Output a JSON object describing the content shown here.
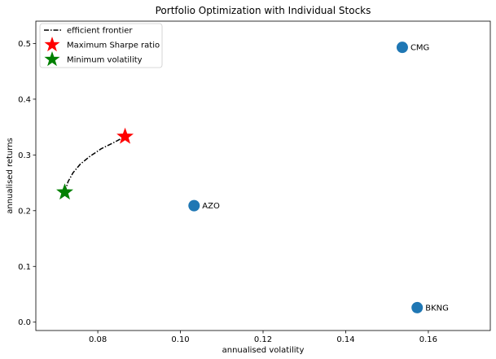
{
  "chart_data": {
    "type": "scatter",
    "title": "Portfolio Optimization with Individual Stocks",
    "xlabel": "annualised volatility",
    "ylabel": "annualised returns",
    "xlim": [
      0.065,
      0.175
    ],
    "ylim": [
      -0.015,
      0.54
    ],
    "xticks": [
      0.08,
      0.1,
      0.12,
      0.14,
      0.16
    ],
    "xtick_labels": [
      "0.08",
      "0.10",
      "0.12",
      "0.14",
      "0.16"
    ],
    "yticks": [
      0.0,
      0.1,
      0.2,
      0.3,
      0.4,
      0.5
    ],
    "ytick_labels": [
      "0.0",
      "0.1",
      "0.2",
      "0.3",
      "0.4",
      "0.5"
    ],
    "legend_position": "top-left",
    "grid": false,
    "stocks": [
      {
        "name": "CMG",
        "x": 0.1537,
        "y": 0.493
      },
      {
        "name": "AZO",
        "x": 0.1033,
        "y": 0.209
      },
      {
        "name": "BKNG",
        "x": 0.1573,
        "y": 0.026
      }
    ],
    "frontier": {
      "name": "efficient frontier",
      "x": [
        0.072,
        0.0728,
        0.074,
        0.0757,
        0.078,
        0.0808,
        0.0838,
        0.0866
      ],
      "y": [
        0.233,
        0.252,
        0.268,
        0.283,
        0.297,
        0.311,
        0.322,
        0.333
      ]
    },
    "max_sharpe": {
      "name": "Maximum Sharpe ratio",
      "x": 0.0866,
      "y": 0.333,
      "color": "#ff0000"
    },
    "min_vol": {
      "name": "Minimum volatility",
      "x": 0.072,
      "y": 0.233,
      "color": "#008000"
    },
    "colors": {
      "stock": "#1f77b4",
      "frontier": "#000000"
    }
  }
}
